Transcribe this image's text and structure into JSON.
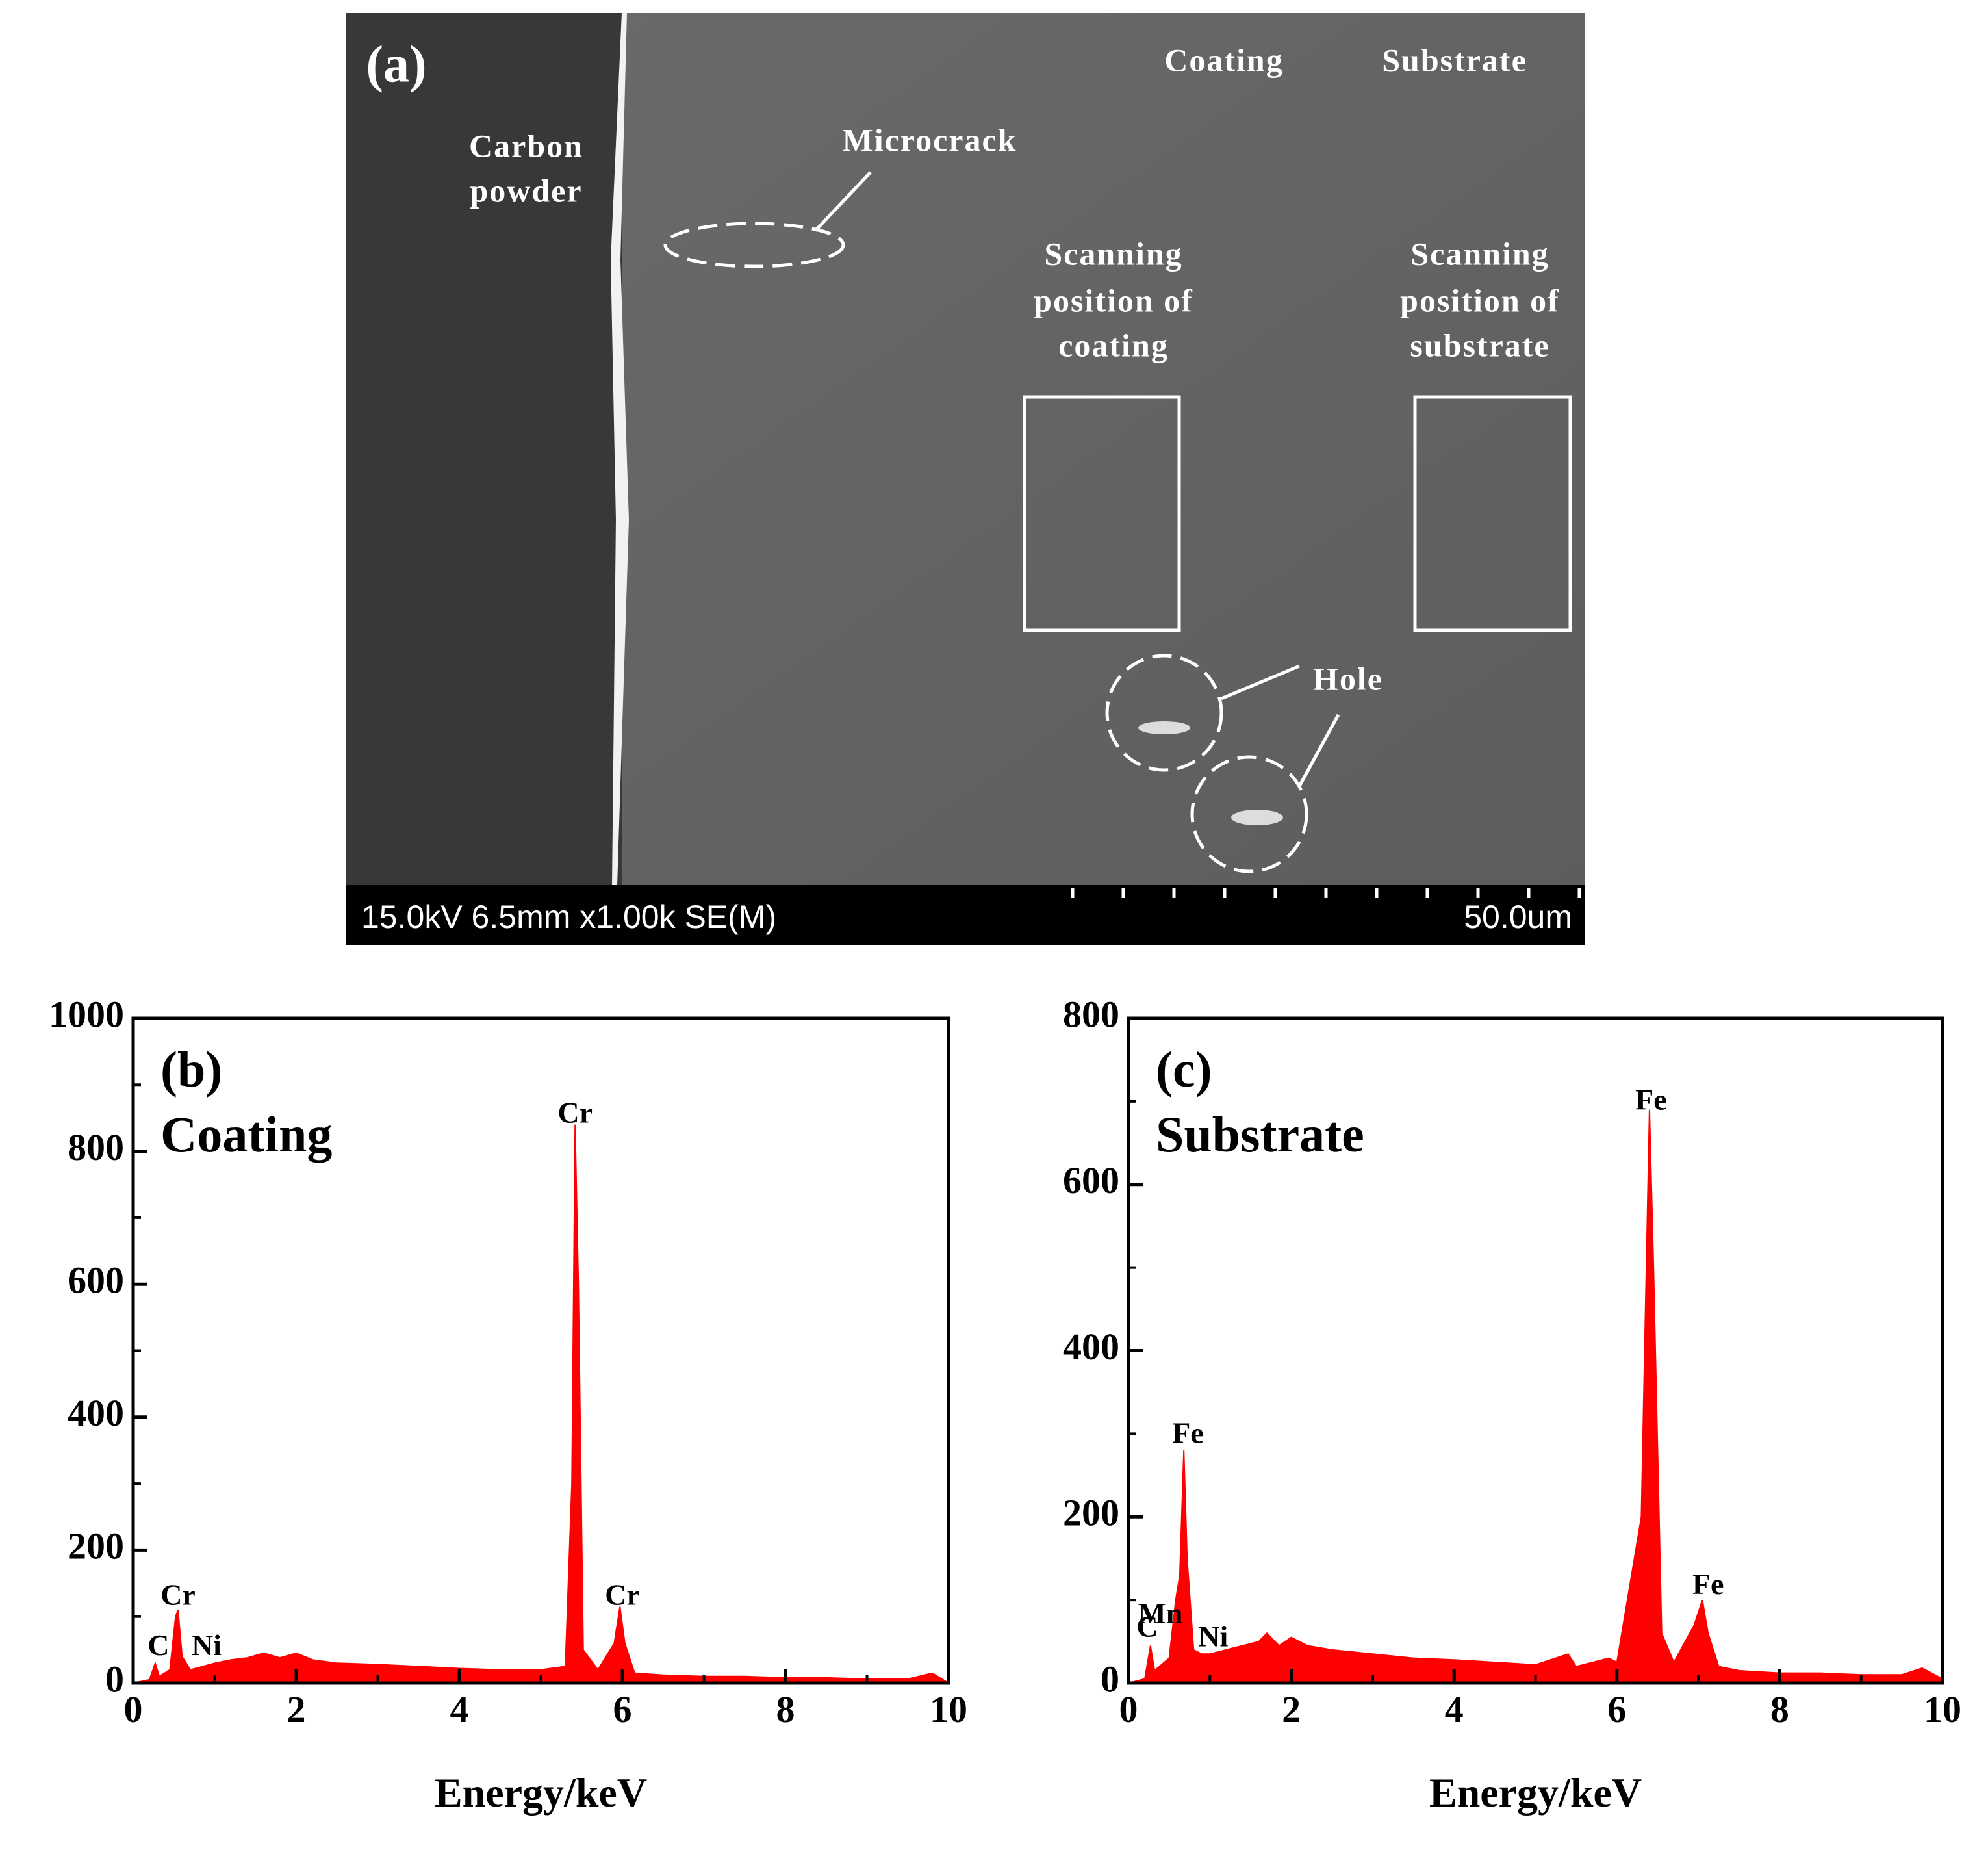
{
  "image": {
    "panel_label": "(a)",
    "carbon_label": [
      "Carbon",
      "powder"
    ],
    "microcrack_label": "Microcrack",
    "coating_label": "Coating",
    "substrate_label": "Substrate",
    "scan_coating_label": [
      "Scanning",
      "position of",
      "coating"
    ],
    "scan_substrate_label": [
      "Scanning",
      "position of",
      "substrate"
    ],
    "hole_label": "Hole",
    "info_bar": "15.0kV 6.5mm x1.00k SE(M)",
    "scale_bar": "50.0um"
  },
  "chart_data": [
    {
      "type": "area",
      "panel_label": "(b)",
      "subtitle": "Coating",
      "x_label": "Energy/keV",
      "color": "#ff0000",
      "x": [
        0,
        0.2,
        0.27,
        0.32,
        0.45,
        0.52,
        0.55,
        0.6,
        0.7,
        0.85,
        1.0,
        1.2,
        1.4,
        1.6,
        1.8,
        2.0,
        2.2,
        2.5,
        3.0,
        3.5,
        4.0,
        4.5,
        5.0,
        5.3,
        5.38,
        5.42,
        5.46,
        5.52,
        5.7,
        5.9,
        5.97,
        6.03,
        6.15,
        6.5,
        7.0,
        7.5,
        8.0,
        8.5,
        9.0,
        9.5,
        9.8,
        10
      ],
      "values": [
        0,
        5,
        30,
        10,
        20,
        100,
        110,
        40,
        20,
        25,
        30,
        35,
        38,
        45,
        38,
        45,
        35,
        30,
        28,
        25,
        22,
        20,
        20,
        25,
        300,
        840,
        600,
        50,
        20,
        60,
        115,
        60,
        15,
        12,
        10,
        10,
        8,
        8,
        6,
        6,
        15,
        0
      ],
      "xlim": [
        0,
        10
      ],
      "xticks": [
        0,
        2,
        4,
        6,
        8,
        10
      ],
      "ylim": [
        0,
        1000
      ],
      "yticks": [
        0,
        200,
        400,
        600,
        800,
        1000
      ],
      "annotations": [
        {
          "text": "C",
          "x": 0.31,
          "y": 42
        },
        {
          "text": "Cr",
          "x": 0.55,
          "y": 118
        },
        {
          "text": "Ni",
          "x": 0.9,
          "y": 42
        },
        {
          "text": "Cr",
          "x": 5.42,
          "y": 843
        },
        {
          "text": "Cr",
          "x": 6.0,
          "y": 118
        }
      ]
    },
    {
      "type": "area",
      "panel_label": "(c)",
      "subtitle": "Substrate",
      "x_label": "Energy/keV",
      "color": "#ff0000",
      "x": [
        0,
        0.2,
        0.27,
        0.32,
        0.5,
        0.58,
        0.63,
        0.68,
        0.72,
        0.8,
        0.9,
        1.0,
        1.2,
        1.4,
        1.6,
        1.7,
        1.85,
        2.0,
        2.2,
        2.5,
        3.0,
        3.5,
        4.0,
        4.5,
        5.0,
        5.4,
        5.5,
        5.9,
        6.0,
        6.3,
        6.4,
        6.45,
        6.55,
        6.7,
        6.95,
        7.05,
        7.12,
        7.25,
        7.5,
        8.0,
        8.5,
        9.0,
        9.5,
        9.75,
        10
      ],
      "values": [
        0,
        5,
        45,
        15,
        30,
        100,
        130,
        280,
        150,
        40,
        35,
        35,
        40,
        45,
        50,
        60,
        45,
        55,
        45,
        40,
        35,
        30,
        28,
        25,
        22,
        35,
        20,
        30,
        25,
        200,
        690,
        500,
        60,
        25,
        70,
        100,
        60,
        20,
        15,
        12,
        12,
        10,
        10,
        18,
        5
      ],
      "xlim": [
        0,
        10
      ],
      "xticks": [
        0,
        2,
        4,
        6,
        8,
        10
      ],
      "ylim": [
        0,
        800
      ],
      "yticks": [
        0,
        200,
        400,
        600,
        800
      ],
      "annotations": [
        {
          "text": "C",
          "x": 0.23,
          "y": 56
        },
        {
          "text": "Mn",
          "x": 0.39,
          "y": 72
        },
        {
          "text": "Ni",
          "x": 1.04,
          "y": 44
        },
        {
          "text": "Fe",
          "x": 0.73,
          "y": 289
        },
        {
          "text": "Fe",
          "x": 6.42,
          "y": 690
        },
        {
          "text": "Fe",
          "x": 7.12,
          "y": 107
        }
      ]
    }
  ]
}
